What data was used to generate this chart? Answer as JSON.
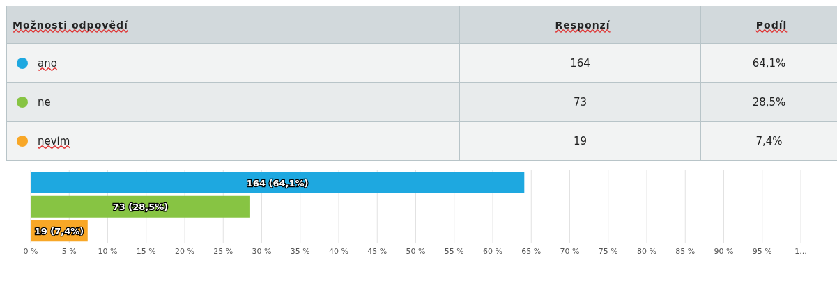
{
  "chart_data": {
    "type": "bar",
    "orientation": "horizontal",
    "categories": [
      null,
      null,
      null
    ],
    "values": [
      64.1,
      28.5,
      7.4
    ],
    "colors": [
      "#1ea8e0",
      "#87c443",
      "#f8a727"
    ],
    "value_labels": [
      "164 (64,1%)",
      "73 (28,5%)",
      "19 (7,4%)"
    ],
    "xlim": [
      0,
      100
    ],
    "xticks": [
      {
        "value": 0,
        "label": "0 %"
      },
      {
        "value": 5,
        "label": "5 %"
      },
      {
        "value": 10,
        "label": "10 %"
      },
      {
        "value": 15,
        "label": "15 %"
      },
      {
        "value": 20,
        "label": "20 %"
      },
      {
        "value": 25,
        "label": "25 %"
      },
      {
        "value": 30,
        "label": "30 %"
      },
      {
        "value": 35,
        "label": "35 %"
      },
      {
        "value": 40,
        "label": "40 %"
      },
      {
        "value": 45,
        "label": "45 %"
      },
      {
        "value": 50,
        "label": "50 %"
      },
      {
        "value": 55,
        "label": "55 %"
      },
      {
        "value": 60,
        "label": "60 %"
      },
      {
        "value": 65,
        "label": "65 %"
      },
      {
        "value": 70,
        "label": "70 %"
      },
      {
        "value": 75,
        "label": "75 %"
      },
      {
        "value": 80,
        "label": "80 %"
      },
      {
        "value": 85,
        "label": "85 %"
      },
      {
        "value": 90,
        "label": "90 %"
      },
      {
        "value": 95,
        "label": "95 %"
      },
      {
        "value": 100,
        "label": "1..."
      }
    ],
    "grid": "x",
    "tick_labels": "x",
    "annotations": [
      "Možnosti odpovědí",
      "Responzí",
      "Podíl",
      "ano",
      "164",
      "64,1%",
      "ne",
      "73",
      "28,5%",
      "nevím",
      "19",
      "7,4%"
    ]
  }
}
